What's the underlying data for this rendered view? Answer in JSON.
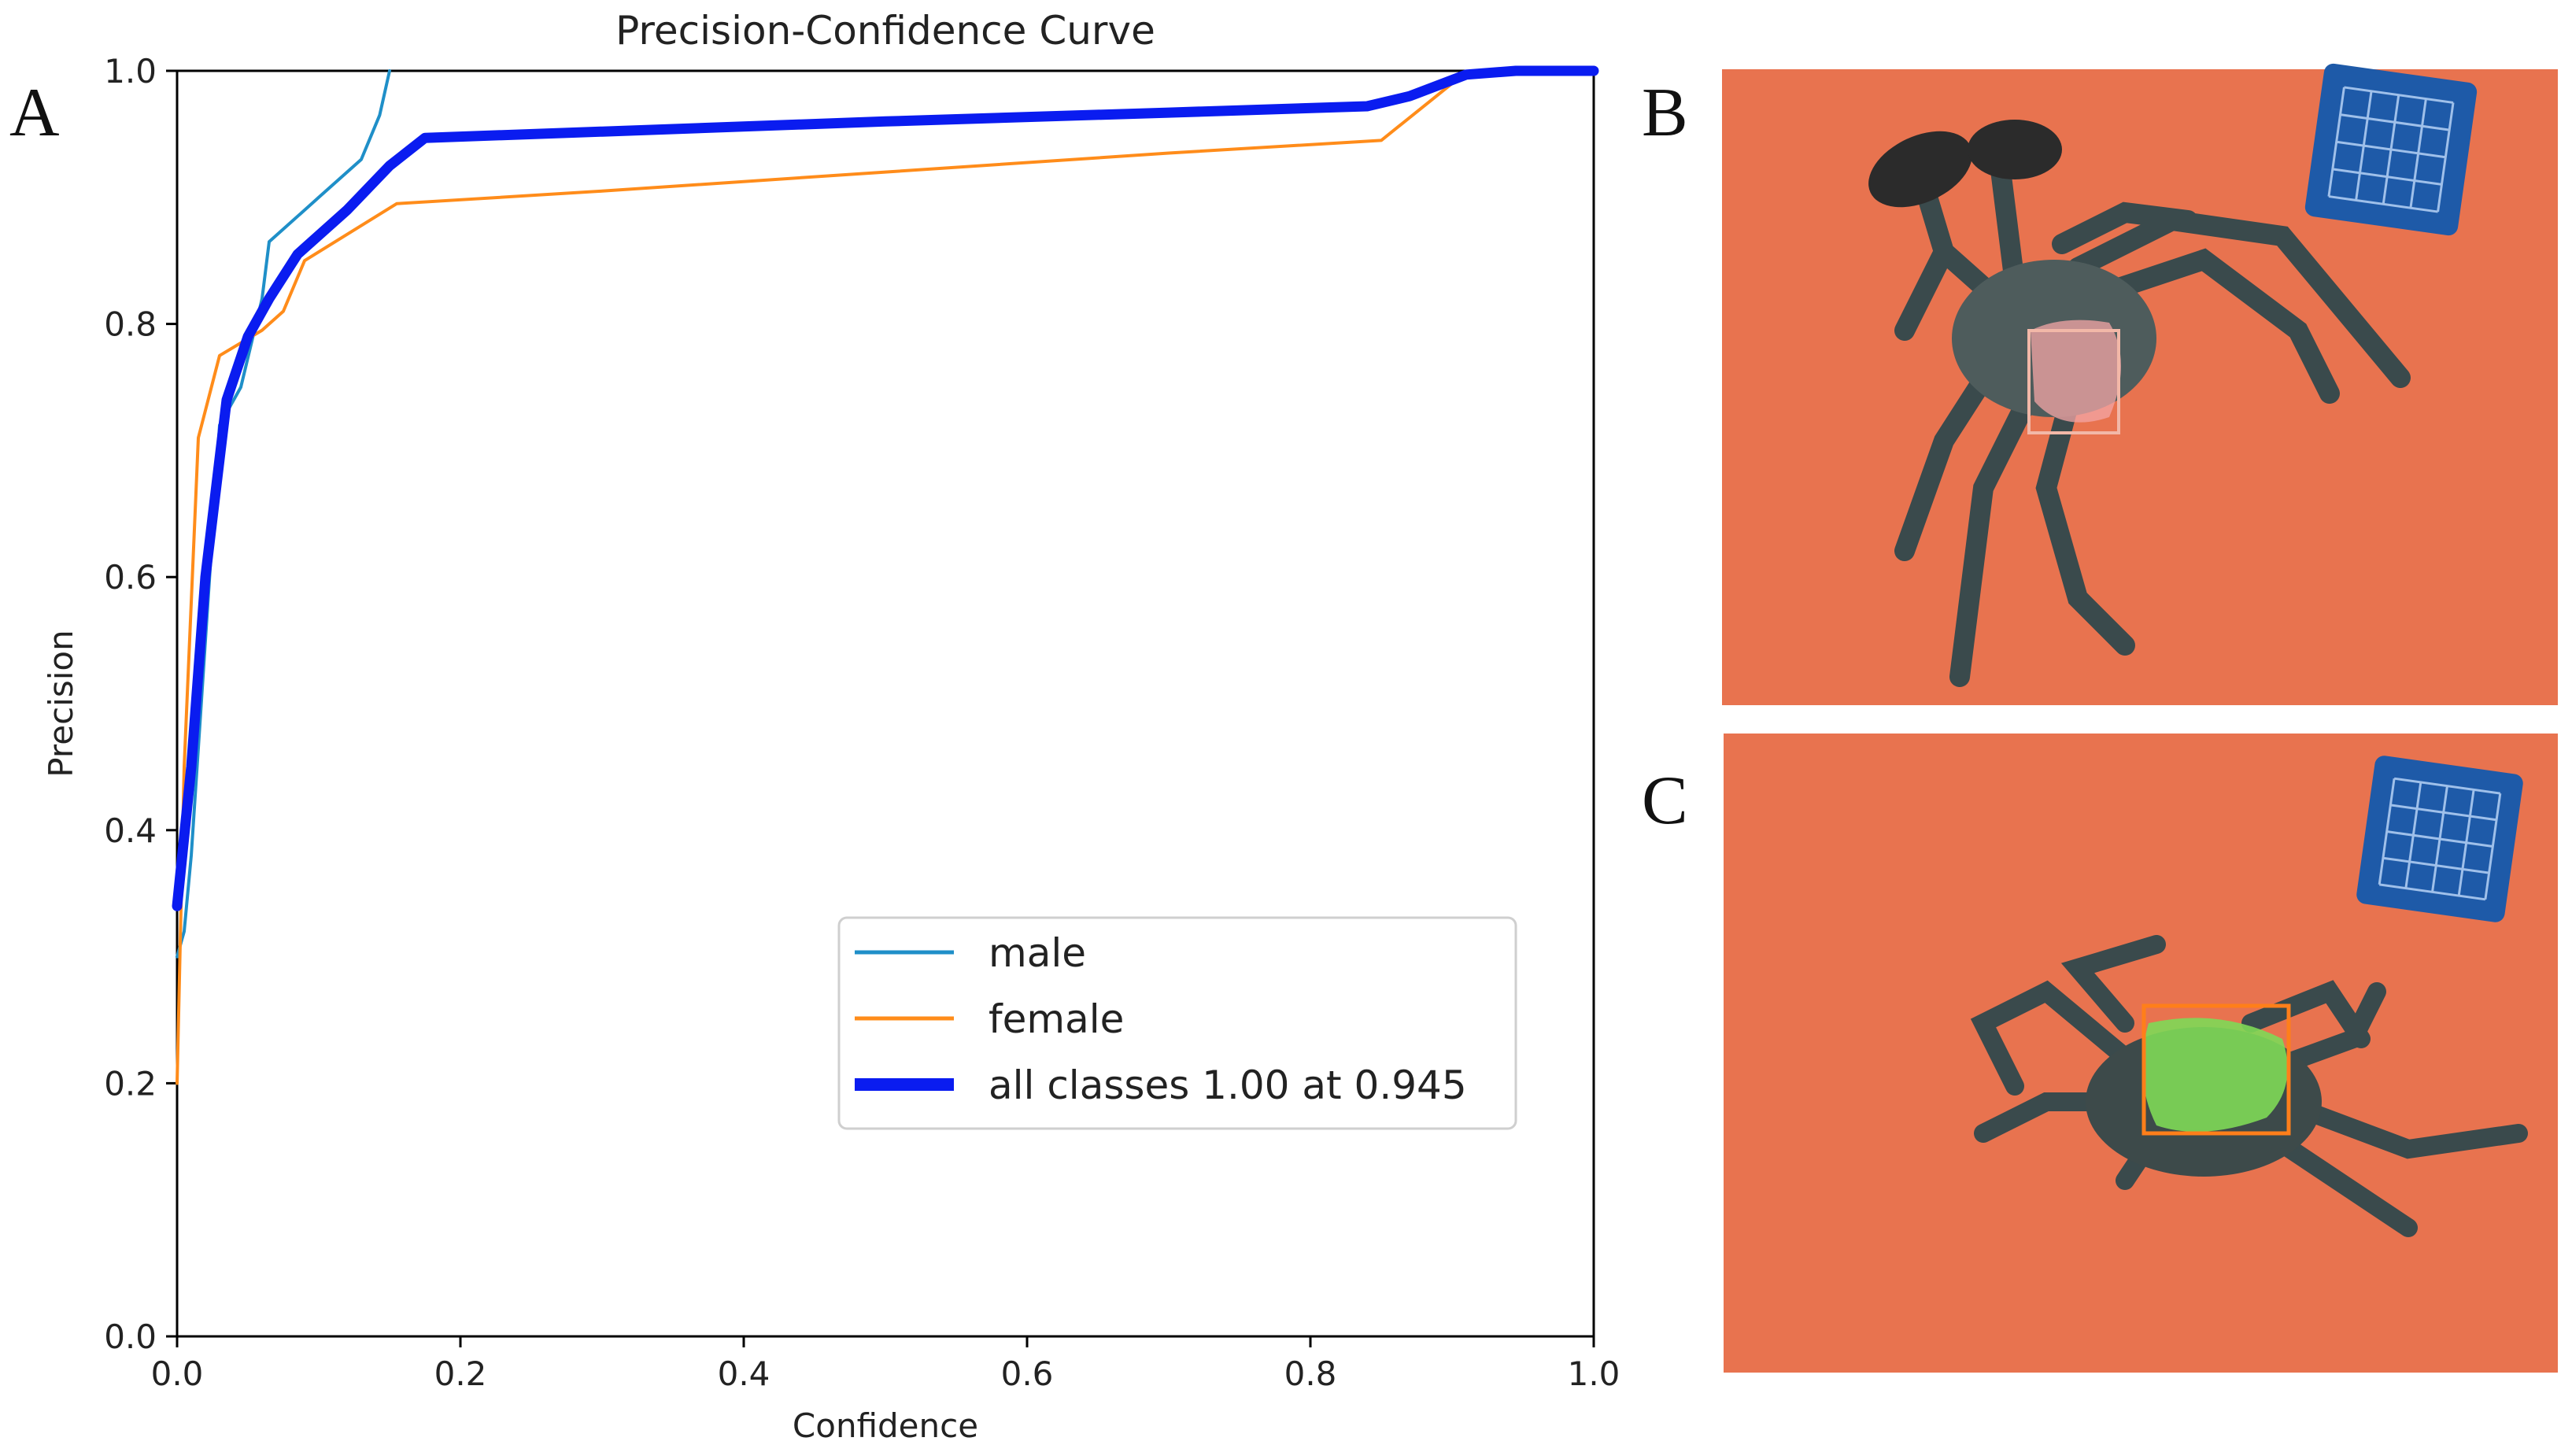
{
  "panel_labels": {
    "a": "A",
    "b": "B",
    "c": "C"
  },
  "colors": {
    "male": "#1f8fc8",
    "female": "#ff8c1a",
    "all": "#0a1cf0",
    "photo_bg": "#e8734f",
    "board": "#1e5aa8",
    "box_b": "#f2b8a8",
    "box_c": "#ff7f1a",
    "segment_b": "#f4a6a6",
    "segment_c": "#7ed957"
  },
  "chart_data": {
    "type": "line",
    "title": "Precision-Confidence Curve",
    "xlabel": "Confidence",
    "ylabel": "Precision",
    "xlim": [
      0,
      1
    ],
    "ylim": [
      0,
      1
    ],
    "xticks": [
      "0.0",
      "0.2",
      "0.4",
      "0.6",
      "0.8",
      "1.0"
    ],
    "yticks": [
      "0.0",
      "0.2",
      "0.4",
      "0.6",
      "0.8",
      "1.0"
    ],
    "grid": false,
    "legend_position": "lower-right",
    "series": [
      {
        "name": "male",
        "label": "male",
        "width": "thin",
        "x": [
          0.0,
          0.005,
          0.01,
          0.02,
          0.03,
          0.045,
          0.06,
          0.065,
          0.08,
          0.1,
          0.13,
          0.143,
          0.15
        ],
        "y": [
          0.3,
          0.32,
          0.38,
          0.55,
          0.72,
          0.75,
          0.82,
          0.865,
          0.88,
          0.9,
          0.93,
          0.965,
          1.0
        ]
      },
      {
        "name": "female",
        "label": "female",
        "width": "thin",
        "x": [
          0.0,
          0.005,
          0.015,
          0.03,
          0.06,
          0.075,
          0.09,
          0.155,
          0.3,
          0.5,
          0.7,
          0.85,
          0.9,
          0.92,
          1.0
        ],
        "y": [
          0.2,
          0.45,
          0.71,
          0.775,
          0.795,
          0.81,
          0.85,
          0.895,
          0.905,
          0.92,
          0.935,
          0.945,
          0.99,
          1.0,
          1.0
        ]
      },
      {
        "name": "all",
        "label": "all classes 1.00 at 0.945",
        "width": "thick",
        "x": [
          0.0,
          0.01,
          0.02,
          0.035,
          0.05,
          0.065,
          0.085,
          0.12,
          0.15,
          0.175,
          0.3,
          0.5,
          0.7,
          0.84,
          0.87,
          0.91,
          0.945,
          1.0
        ],
        "y": [
          0.34,
          0.45,
          0.6,
          0.74,
          0.79,
          0.82,
          0.855,
          0.89,
          0.925,
          0.947,
          0.952,
          0.96,
          0.967,
          0.972,
          0.98,
          0.997,
          1.0,
          1.0
        ]
      }
    ]
  }
}
